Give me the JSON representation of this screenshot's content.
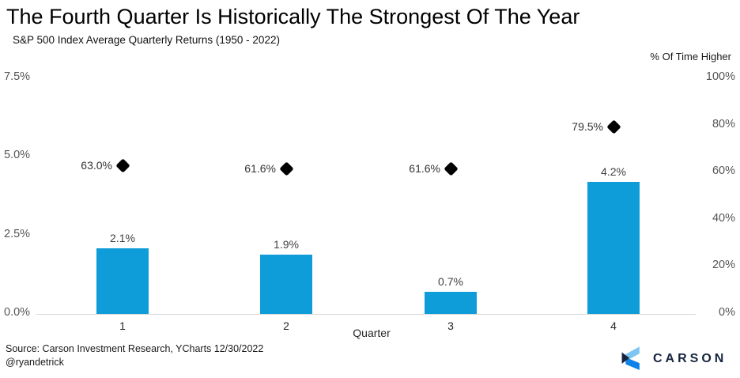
{
  "header": {
    "title": "The Fourth Quarter Is Historically The Strongest Of The Year",
    "subtitle": "S&P 500 Index Average Quarterly Returns (1950 - 2022)"
  },
  "chart_data": {
    "type": "bar",
    "title": "The Fourth Quarter Is Historically The Strongest Of The Year",
    "subtitle": "S&P 500 Index Average Quarterly Returns (1950 - 2022)",
    "categories": [
      "1",
      "2",
      "3",
      "4"
    ],
    "xlabel": "Quarter",
    "series": [
      {
        "name": "Average quarterly return",
        "type": "bar",
        "axis": "left",
        "values": [
          2.1,
          1.9,
          0.7,
          4.2
        ],
        "labels": [
          "2.1%",
          "1.9%",
          "0.7%",
          "4.2%"
        ],
        "color": "#0f9dd9"
      },
      {
        "name": "% Of Time Higher",
        "type": "scatter",
        "marker": "diamond",
        "axis": "right",
        "values": [
          63.0,
          61.6,
          61.6,
          79.5
        ],
        "labels": [
          "63.0%",
          "61.6%",
          "61.6%",
          "79.5%"
        ],
        "color": "#000000"
      }
    ],
    "left_axis": {
      "min": 0,
      "max": 7.5,
      "tick_values": [
        0,
        2.5,
        5,
        7.5
      ],
      "tick_labels": [
        "0.0%",
        "2.5%",
        "5.0%",
        "7.5%"
      ]
    },
    "right_axis": {
      "title": "% Of Time Higher",
      "min": 0,
      "max": 100,
      "tick_values": [
        0,
        20,
        40,
        60,
        80,
        100
      ],
      "tick_labels": [
        "0%",
        "20%",
        "40%",
        "60%",
        "80%",
        "100%"
      ]
    },
    "grid": false,
    "legend": "none"
  },
  "footer": {
    "source": "Source: Carson Investment Research, YCharts 12/30/2022",
    "handle": "@ryandetrick",
    "logo_text": "CARSON"
  },
  "colors": {
    "bar": "#0f9dd9",
    "marker": "#000000",
    "axis_line": "#d9d9d9",
    "logo_navy": "#16243e",
    "logo_light_blue": "#7ec5f2",
    "logo_bright_blue": "#0e82e8"
  }
}
